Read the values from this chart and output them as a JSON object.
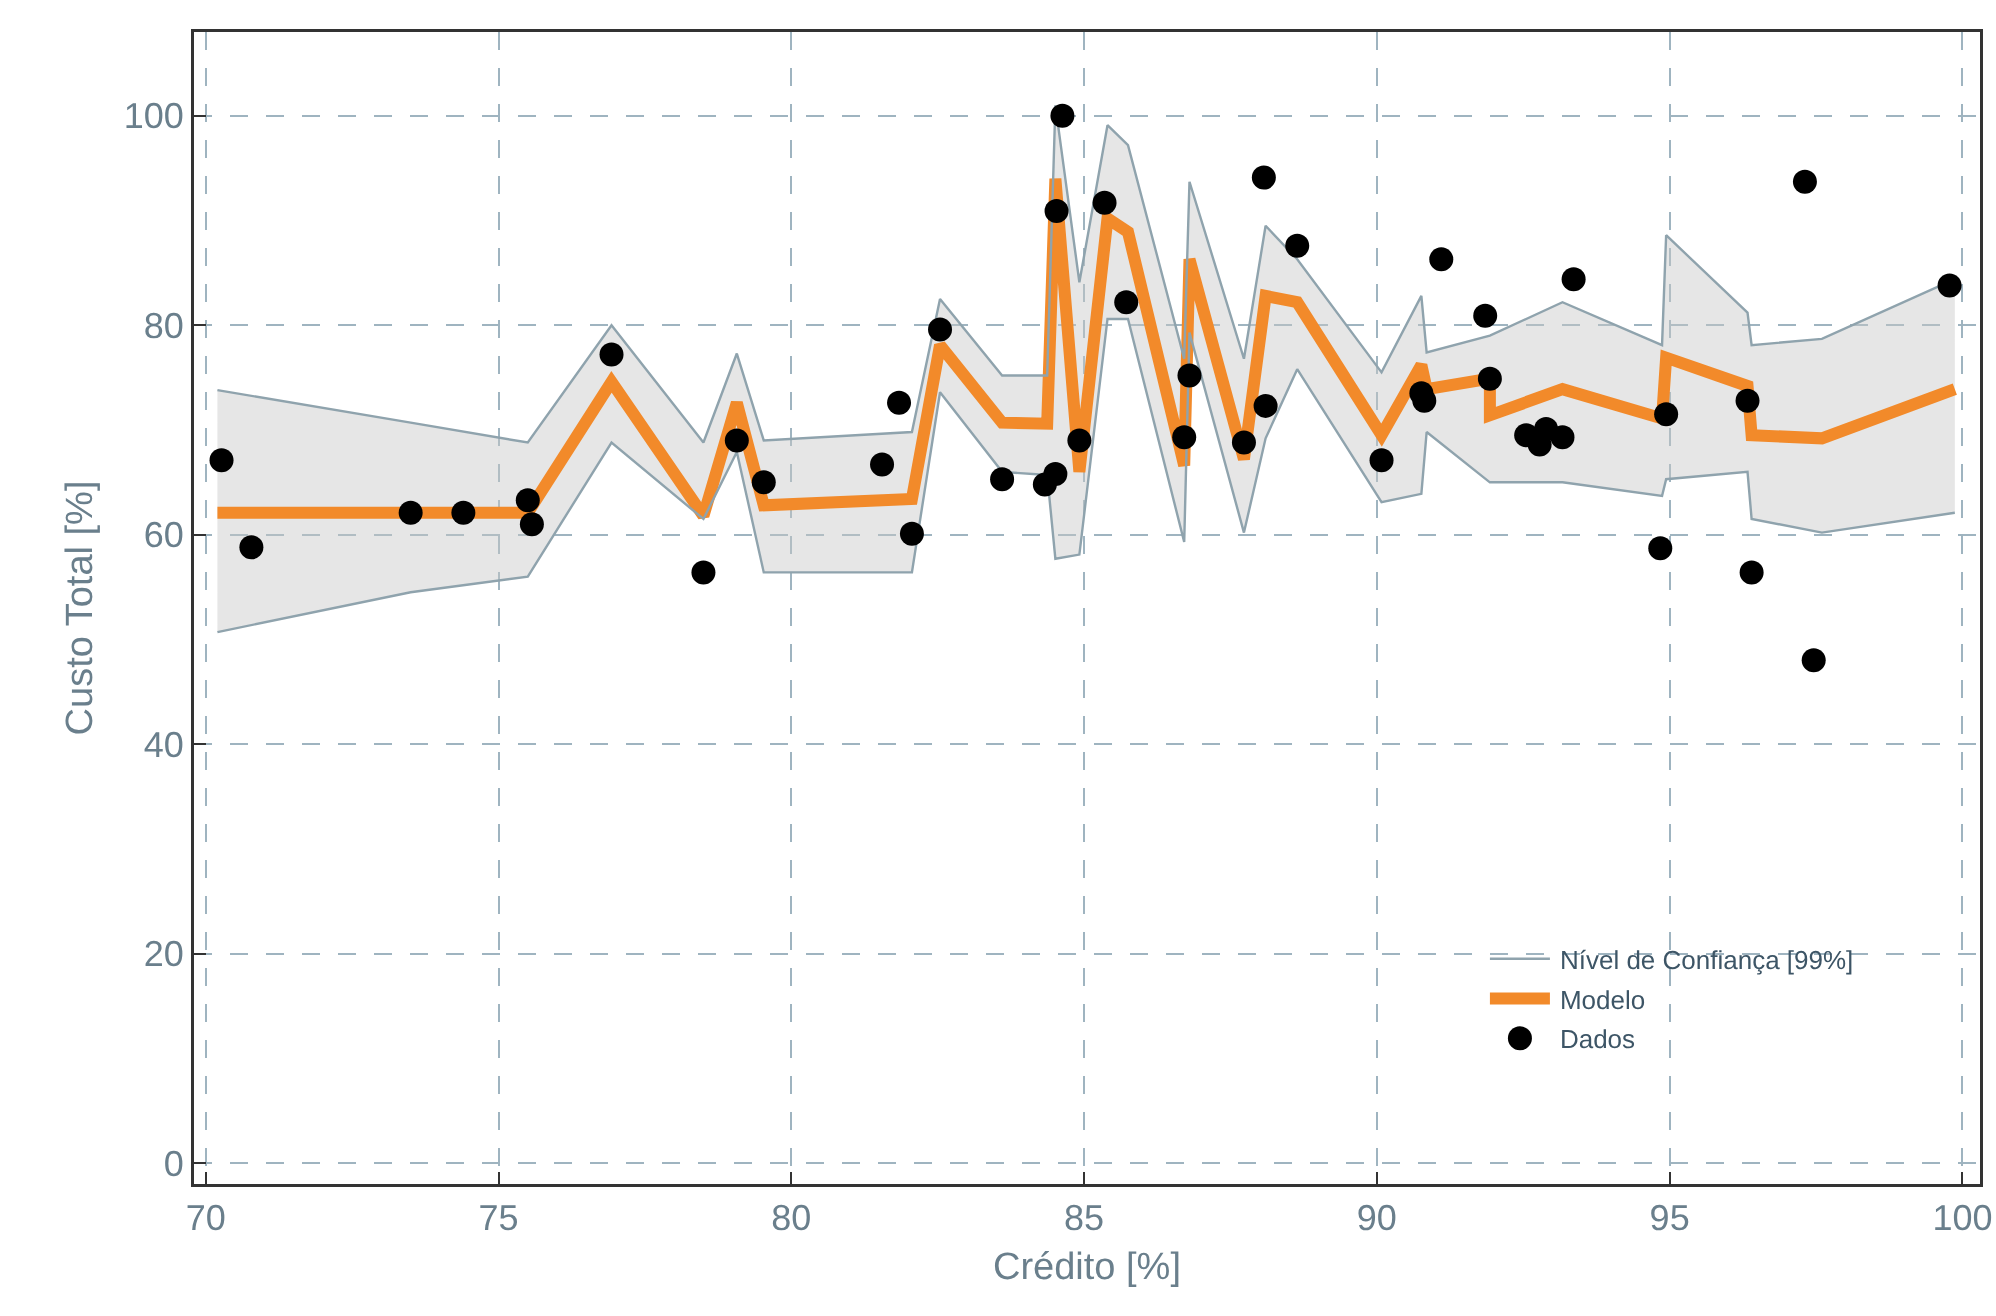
{
  "chart_data": {
    "type": "scatter",
    "xlabel": "Crédito [%]",
    "ylabel": "Custo Total [%]",
    "xlim": [
      69.8,
      100.3
    ],
    "ylim": [
      -2,
      108
    ],
    "xticks": [
      70,
      75,
      80,
      85,
      90,
      95,
      100
    ],
    "yticks": [
      0,
      20,
      40,
      60,
      80,
      100
    ],
    "grid": true,
    "legend": "bottom right",
    "marker": "circle",
    "series": [
      {
        "name": "Dados",
        "color": "#000000",
        "x": [
          70.27,
          70.78,
          73.5,
          74.4,
          75.5,
          75.57,
          76.93,
          78.5,
          79.07,
          79.53,
          81.55,
          81.84,
          82.06,
          82.54,
          83.6,
          84.33,
          84.51,
          84.53,
          84.63,
          84.92,
          85.35,
          85.72,
          86.71,
          86.8,
          87.73,
          88.07,
          88.1,
          88.64,
          90.08,
          90.76,
          90.81,
          91.1,
          91.85,
          91.93,
          92.55,
          92.78,
          92.89,
          93.17,
          93.36,
          94.84,
          94.94,
          96.33,
          96.4,
          97.31,
          97.46,
          99.78
        ],
        "values": [
          67.1,
          58.8,
          62.1,
          62.1,
          63.3,
          61.0,
          77.2,
          56.4,
          69.0,
          65.0,
          66.7,
          72.6,
          60.1,
          79.6,
          65.3,
          64.8,
          65.8,
          90.9,
          100,
          69.0,
          91.7,
          82.2,
          69.3,
          75.2,
          68.8,
          94.1,
          72.3,
          87.6,
          67.1,
          73.5,
          72.8,
          86.3,
          80.9,
          74.9,
          69.5,
          68.6,
          70.1,
          69.3,
          84.4,
          58.7,
          71.5,
          72.8,
          56.4,
          93.7,
          48.0,
          83.8
        ]
      },
      {
        "name": "Modelo",
        "type": "line",
        "marker": "none",
        "color": "#f28a2a",
        "x": [
          70.2,
          73.5,
          75.5,
          76.93,
          78.5,
          79.07,
          79.53,
          82.06,
          82.54,
          83.6,
          84.37,
          84.51,
          84.92,
          85.4,
          85.75,
          86.71,
          86.8,
          87.73,
          88.1,
          88.64,
          90.08,
          90.76,
          90.85,
          91.93,
          91.93,
          93.17,
          94.87,
          94.94,
          96.33,
          96.4,
          97.6,
          99.87
        ],
        "values": [
          62.1,
          62.1,
          62.1,
          74.6,
          61.8,
          72.6,
          62.8,
          63.4,
          78.1,
          70.7,
          70.6,
          94.0,
          66.0,
          90.2,
          88.9,
          66.6,
          86.3,
          67.2,
          82.8,
          82.2,
          69.5,
          76.2,
          73.9,
          74.9,
          71.4,
          73.9,
          71.1,
          76.9,
          74.2,
          69.5,
          69.2,
          73.9
        ],
        "lower": [
          50.7,
          54.5,
          56.0,
          68.8,
          61.5,
          67.9,
          56.4,
          56.4,
          73.6,
          66.0,
          65.7,
          57.7,
          58.1,
          80.6,
          80.6,
          59.3,
          79.3,
          60.2,
          69.2,
          75.8,
          63.1,
          63.9,
          69.8,
          65.0,
          65.0,
          65.0,
          63.7,
          65.3,
          66.0,
          61.5,
          60.2,
          62.1
        ],
        "upper": [
          73.8,
          70.7,
          68.8,
          80.0,
          68.8,
          77.3,
          69.0,
          69.8,
          82.5,
          75.2,
          75.2,
          101,
          84.1,
          99.1,
          97.2,
          76.8,
          93.7,
          76.8,
          89.5,
          86.3,
          75.5,
          82.8,
          77.4,
          79.0,
          79.0,
          82.2,
          78.1,
          88.6,
          81.2,
          78.1,
          78.7,
          84.4
        ]
      },
      {
        "name": "Nível de Confiança [99%]",
        "type": "line",
        "marker": "none",
        "color": "#8fa3ad",
        "x": [
          70.2,
          73.5,
          75.5,
          76.93,
          78.5,
          79.07,
          79.53,
          82.06,
          82.54,
          83.6,
          84.37,
          84.51,
          84.92,
          85.4,
          85.75,
          86.71,
          86.8,
          87.73,
          88.1,
          88.64,
          90.08,
          90.76,
          90.85,
          91.93,
          93.17,
          94.87,
          94.94,
          96.33,
          96.4,
          97.6,
          99.87
        ],
        "values": [
          73.8,
          70.7,
          68.8,
          80.0,
          68.8,
          77.3,
          69.0,
          69.8,
          82.5,
          75.2,
          75.2,
          101,
          84.1,
          99.1,
          97.2,
          76.8,
          93.7,
          76.8,
          89.5,
          86.3,
          75.5,
          82.8,
          77.4,
          79.0,
          82.2,
          78.1,
          88.6,
          81.2,
          78.1,
          78.7,
          84.4
        ]
      },
      {
        "type": "line",
        "marker": "none",
        "color": "#8fa3ad",
        "x": [
          70.2,
          73.5,
          75.5,
          76.93,
          78.5,
          79.07,
          79.53,
          82.06,
          82.54,
          83.6,
          84.37,
          84.51,
          84.92,
          85.4,
          85.75,
          86.71,
          86.8,
          87.73,
          88.1,
          88.64,
          90.08,
          90.76,
          90.85,
          91.93,
          93.17,
          94.87,
          94.94,
          96.33,
          96.4,
          97.6,
          99.87
        ],
        "values": [
          50.7,
          54.5,
          56.0,
          68.8,
          61.5,
          67.9,
          56.4,
          56.4,
          73.6,
          66.0,
          65.7,
          57.7,
          58.1,
          80.6,
          80.6,
          59.3,
          79.3,
          60.2,
          69.2,
          75.8,
          63.1,
          63.9,
          69.8,
          65.0,
          65.0,
          63.7,
          65.3,
          66.0,
          61.5,
          60.2,
          62.1
        ]
      }
    ]
  }
}
